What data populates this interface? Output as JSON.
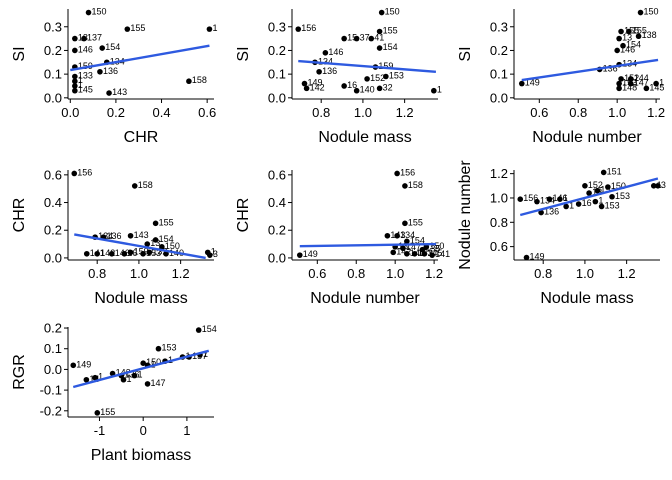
{
  "chart_data": [
    {
      "type": "scatter",
      "xlabel": "CHR",
      "ylabel": "SI",
      "xlim": [
        -0.01,
        0.63
      ],
      "ylim": [
        -0.005,
        0.375
      ],
      "xticks": [
        {
          "v": 0.0,
          "label": "0.0"
        },
        {
          "v": 0.2,
          "label": "0.2"
        },
        {
          "v": 0.4,
          "label": "0.4"
        },
        {
          "v": 0.6,
          "label": "0.6"
        }
      ],
      "yticks": [
        {
          "v": 0.0,
          "label": "0.0"
        },
        {
          "v": 0.1,
          "label": "0.1"
        },
        {
          "v": 0.2,
          "label": "0.2"
        },
        {
          "v": 0.3,
          "label": "0.3"
        }
      ],
      "fit": {
        "x": [
          0.0,
          0.61
        ],
        "y": [
          0.117,
          0.22
        ]
      },
      "points": [
        {
          "x": 0.08,
          "y": 0.36,
          "label": "150"
        },
        {
          "x": 0.25,
          "y": 0.29,
          "label": "155"
        },
        {
          "x": 0.61,
          "y": 0.29,
          "label": "1"
        },
        {
          "x": 0.02,
          "y": 0.25,
          "label": "13"
        },
        {
          "x": 0.06,
          "y": 0.25,
          "label": "137"
        },
        {
          "x": 0.02,
          "y": 0.2,
          "label": "146"
        },
        {
          "x": 0.14,
          "y": 0.21,
          "label": "154"
        },
        {
          "x": 0.02,
          "y": 0.13,
          "label": "159"
        },
        {
          "x": 0.16,
          "y": 0.15,
          "label": "134"
        },
        {
          "x": 0.13,
          "y": 0.11,
          "label": "136"
        },
        {
          "x": 0.02,
          "y": 0.09,
          "label": "133"
        },
        {
          "x": 0.02,
          "y": 0.07,
          "label": "1"
        },
        {
          "x": 0.02,
          "y": 0.05,
          "label": "1"
        },
        {
          "x": 0.02,
          "y": 0.03,
          "label": "145"
        },
        {
          "x": 0.52,
          "y": 0.07,
          "label": "158"
        },
        {
          "x": 0.17,
          "y": 0.02,
          "label": "143"
        }
      ]
    },
    {
      "type": "scatter",
      "xlabel": "Nodule mass",
      "ylabel": "SI",
      "xlim": [
        0.66,
        1.36
      ],
      "ylim": [
        -0.005,
        0.375
      ],
      "xticks": [
        {
          "v": 0.8,
          "label": "0.8"
        },
        {
          "v": 1.0,
          "label": "1.0"
        },
        {
          "v": 1.2,
          "label": "1.2"
        }
      ],
      "yticks": [
        {
          "v": 0.0,
          "label": "0.0"
        },
        {
          "v": 0.1,
          "label": "0.1"
        },
        {
          "v": 0.2,
          "label": "0.2"
        },
        {
          "v": 0.3,
          "label": "0.3"
        }
      ],
      "fit": {
        "x": [
          0.69,
          1.35
        ],
        "y": [
          0.155,
          0.11
        ]
      },
      "points": [
        {
          "x": 1.09,
          "y": 0.36,
          "label": "150"
        },
        {
          "x": 0.69,
          "y": 0.29,
          "label": "156"
        },
        {
          "x": 1.08,
          "y": 0.28,
          "label": "155"
        },
        {
          "x": 0.91,
          "y": 0.25,
          "label": "15"
        },
        {
          "x": 0.97,
          "y": 0.25,
          "label": "37"
        },
        {
          "x": 1.04,
          "y": 0.25,
          "label": "41"
        },
        {
          "x": 0.82,
          "y": 0.19,
          "label": "146"
        },
        {
          "x": 1.08,
          "y": 0.21,
          "label": "154"
        },
        {
          "x": 0.77,
          "y": 0.15,
          "label": "134"
        },
        {
          "x": 1.06,
          "y": 0.13,
          "label": "159"
        },
        {
          "x": 0.79,
          "y": 0.11,
          "label": "136"
        },
        {
          "x": 1.02,
          "y": 0.08,
          "label": "152"
        },
        {
          "x": 1.11,
          "y": 0.09,
          "label": "153"
        },
        {
          "x": 0.72,
          "y": 0.06,
          "label": "149"
        },
        {
          "x": 0.73,
          "y": 0.04,
          "label": "142"
        },
        {
          "x": 0.91,
          "y": 0.05,
          "label": "16"
        },
        {
          "x": 0.97,
          "y": 0.03,
          "label": "140"
        },
        {
          "x": 1.08,
          "y": 0.04,
          "label": "32"
        },
        {
          "x": 1.34,
          "y": 0.03,
          "label": "1"
        }
      ]
    },
    {
      "type": "scatter",
      "xlabel": "Nodule number",
      "ylabel": "SI",
      "xlim": [
        0.47,
        1.22
      ],
      "ylim": [
        -0.005,
        0.375
      ],
      "xticks": [
        {
          "v": 0.6,
          "label": "0.6"
        },
        {
          "v": 0.8,
          "label": "0.8"
        },
        {
          "v": 1.0,
          "label": "1.0"
        },
        {
          "v": 1.2,
          "label": "1.2"
        }
      ],
      "yticks": [
        {
          "v": 0.0,
          "label": "0.0"
        },
        {
          "v": 0.1,
          "label": "0.1"
        },
        {
          "v": 0.2,
          "label": "0.2"
        },
        {
          "v": 0.3,
          "label": "0.3"
        }
      ],
      "fit": {
        "x": [
          0.51,
          1.21
        ],
        "y": [
          0.075,
          0.16
        ]
      },
      "points": [
        {
          "x": 1.12,
          "y": 0.36,
          "label": "150"
        },
        {
          "x": 1.02,
          "y": 0.28,
          "label": "155"
        },
        {
          "x": 1.06,
          "y": 0.28,
          "label": "155"
        },
        {
          "x": 1.11,
          "y": 0.26,
          "label": "138"
        },
        {
          "x": 1.01,
          "y": 0.25,
          "label": "13"
        },
        {
          "x": 1.03,
          "y": 0.22,
          "label": "154"
        },
        {
          "x": 1.0,
          "y": 0.2,
          "label": "146"
        },
        {
          "x": 1.01,
          "y": 0.14,
          "label": "134"
        },
        {
          "x": 0.91,
          "y": 0.12,
          "label": "136"
        },
        {
          "x": 1.02,
          "y": 0.08,
          "label": "152"
        },
        {
          "x": 1.07,
          "y": 0.08,
          "label": "144"
        },
        {
          "x": 1.01,
          "y": 0.06,
          "label": "153"
        },
        {
          "x": 1.07,
          "y": 0.06,
          "label": "147"
        },
        {
          "x": 1.01,
          "y": 0.04,
          "label": "148"
        },
        {
          "x": 1.15,
          "y": 0.04,
          "label": "145"
        },
        {
          "x": 1.2,
          "y": 0.06,
          "label": "1"
        },
        {
          "x": 0.51,
          "y": 0.06,
          "label": "149"
        }
      ]
    },
    {
      "type": "scatter",
      "xlabel": "Nodule mass",
      "ylabel": "CHR",
      "xlim": [
        0.66,
        1.36
      ],
      "ylim": [
        -0.015,
        0.635
      ],
      "xticks": [
        {
          "v": 0.8,
          "label": "0.8"
        },
        {
          "v": 1.0,
          "label": "1.0"
        },
        {
          "v": 1.2,
          "label": "1.2"
        }
      ],
      "yticks": [
        {
          "v": 0.0,
          "label": "0.0"
        },
        {
          "v": 0.2,
          "label": "0.2"
        },
        {
          "v": 0.4,
          "label": "0.4"
        },
        {
          "v": 0.6,
          "label": "0.6"
        }
      ],
      "fit": {
        "x": [
          0.69,
          1.32
        ],
        "y": [
          0.17,
          0.0
        ]
      },
      "points": [
        {
          "x": 0.69,
          "y": 0.61,
          "label": "156"
        },
        {
          "x": 0.98,
          "y": 0.52,
          "label": "158"
        },
        {
          "x": 1.08,
          "y": 0.25,
          "label": "155"
        },
        {
          "x": 0.79,
          "y": 0.15,
          "label": "134"
        },
        {
          "x": 0.83,
          "y": 0.15,
          "label": "136"
        },
        {
          "x": 0.96,
          "y": 0.16,
          "label": "143"
        },
        {
          "x": 1.08,
          "y": 0.13,
          "label": "154"
        },
        {
          "x": 1.11,
          "y": 0.08,
          "label": "150"
        },
        {
          "x": 1.04,
          "y": 0.1,
          "label": "13"
        },
        {
          "x": 0.75,
          "y": 0.03,
          "label": "141"
        },
        {
          "x": 0.8,
          "y": 0.03,
          "label": "142"
        },
        {
          "x": 0.87,
          "y": 0.03,
          "label": "146"
        },
        {
          "x": 0.93,
          "y": 0.03,
          "label": "16"
        },
        {
          "x": 0.96,
          "y": 0.04,
          "label": "159"
        },
        {
          "x": 1.02,
          "y": 0.03,
          "label": "153"
        },
        {
          "x": 1.05,
          "y": 0.04,
          "label": "132"
        },
        {
          "x": 1.13,
          "y": 0.03,
          "label": "140"
        },
        {
          "x": 1.33,
          "y": 0.04,
          "label": "1"
        },
        {
          "x": 1.34,
          "y": 0.02,
          "label": "3"
        }
      ]
    },
    {
      "type": "scatter",
      "xlabel": "Nodule number",
      "ylabel": "CHR",
      "xlim": [
        0.47,
        1.22
      ],
      "ylim": [
        -0.015,
        0.635
      ],
      "xticks": [
        {
          "v": 0.6,
          "label": "0.6"
        },
        {
          "v": 0.8,
          "label": "0.8"
        },
        {
          "v": 1.0,
          "label": "1.0"
        },
        {
          "v": 1.2,
          "label": "1.2"
        }
      ],
      "yticks": [
        {
          "v": 0.0,
          "label": "0.0"
        },
        {
          "v": 0.2,
          "label": "0.2"
        },
        {
          "v": 0.4,
          "label": "0.4"
        },
        {
          "v": 0.6,
          "label": "0.6"
        }
      ],
      "fit": {
        "x": [
          0.51,
          1.21
        ],
        "y": [
          0.085,
          0.1
        ]
      },
      "points": [
        {
          "x": 1.01,
          "y": 0.61,
          "label": "156"
        },
        {
          "x": 1.05,
          "y": 0.52,
          "label": "158"
        },
        {
          "x": 1.05,
          "y": 0.25,
          "label": "155"
        },
        {
          "x": 0.96,
          "y": 0.16,
          "label": "143"
        },
        {
          "x": 1.01,
          "y": 0.16,
          "label": "134"
        },
        {
          "x": 1.06,
          "y": 0.12,
          "label": "154"
        },
        {
          "x": 1.0,
          "y": 0.08,
          "label": "13"
        },
        {
          "x": 1.04,
          "y": 0.07,
          "label": "147"
        },
        {
          "x": 1.16,
          "y": 0.08,
          "label": "150"
        },
        {
          "x": 1.14,
          "y": 0.06,
          "label": "135"
        },
        {
          "x": 0.99,
          "y": 0.04,
          "label": "142"
        },
        {
          "x": 1.06,
          "y": 0.03,
          "label": "140"
        },
        {
          "x": 1.1,
          "y": 0.03,
          "label": "153"
        },
        {
          "x": 1.15,
          "y": 0.03,
          "label": "145"
        },
        {
          "x": 1.19,
          "y": 0.02,
          "label": "141"
        },
        {
          "x": 0.51,
          "y": 0.02,
          "label": "149"
        }
      ]
    },
    {
      "type": "scatter",
      "xlabel": "Nodule mass",
      "ylabel": "Nodule number",
      "xlim": [
        0.66,
        1.36
      ],
      "ylim": [
        0.49,
        1.23
      ],
      "xticks": [
        {
          "v": 0.8,
          "label": "0.8"
        },
        {
          "v": 1.0,
          "label": "1.0"
        },
        {
          "v": 1.2,
          "label": "1.2"
        }
      ],
      "yticks": [
        {
          "v": 0.6,
          "label": "0.6"
        },
        {
          "v": 0.8,
          "label": "0.8"
        },
        {
          "v": 1.0,
          "label": "1.0"
        },
        {
          "v": 1.2,
          "label": "1.2"
        }
      ],
      "fit": {
        "x": [
          0.69,
          1.35
        ],
        "y": [
          0.86,
          1.16
        ]
      },
      "points": [
        {
          "x": 1.09,
          "y": 1.21,
          "label": "151"
        },
        {
          "x": 0.69,
          "y": 0.99,
          "label": "156"
        },
        {
          "x": 0.77,
          "y": 0.97,
          "label": "134"
        },
        {
          "x": 0.83,
          "y": 0.99,
          "label": "146"
        },
        {
          "x": 0.88,
          "y": 0.99,
          "label": "1"
        },
        {
          "x": 0.79,
          "y": 0.88,
          "label": "136"
        },
        {
          "x": 0.91,
          "y": 0.93,
          "label": "1"
        },
        {
          "x": 0.97,
          "y": 0.95,
          "label": "16"
        },
        {
          "x": 1.0,
          "y": 1.1,
          "label": "152"
        },
        {
          "x": 1.02,
          "y": 1.04,
          "label": "13"
        },
        {
          "x": 1.06,
          "y": 1.06,
          "label": "15"
        },
        {
          "x": 1.11,
          "y": 1.09,
          "label": "150"
        },
        {
          "x": 1.13,
          "y": 1.01,
          "label": "153"
        },
        {
          "x": 1.08,
          "y": 0.93,
          "label": "153"
        },
        {
          "x": 1.05,
          "y": 0.97,
          "label": "1"
        },
        {
          "x": 1.33,
          "y": 1.1,
          "label": "1"
        },
        {
          "x": 1.35,
          "y": 1.1,
          "label": "3"
        },
        {
          "x": 0.72,
          "y": 0.51,
          "label": "149"
        }
      ]
    },
    {
      "type": "scatter",
      "xlabel": "Plant biomass",
      "ylabel": "RGR",
      "xlim": [
        -1.72,
        1.62
      ],
      "ylim": [
        -0.23,
        0.205
      ],
      "xticks": [
        {
          "v": -1,
          "label": "-1"
        },
        {
          "v": 0,
          "label": "0"
        },
        {
          "v": 1,
          "label": "1"
        }
      ],
      "yticks": [
        {
          "v": -0.2,
          "label": "-0.2"
        },
        {
          "v": -0.1,
          "label": "-0.1"
        },
        {
          "v": 0.0,
          "label": "0.0"
        },
        {
          "v": 0.1,
          "label": "0.1"
        },
        {
          "v": 0.2,
          "label": "0.2"
        }
      ],
      "fit": {
        "x": [
          -1.6,
          1.5
        ],
        "y": [
          -0.085,
          0.09
        ]
      },
      "points": [
        {
          "x": 1.27,
          "y": 0.19,
          "label": "154"
        },
        {
          "x": 0.35,
          "y": 0.1,
          "label": "153"
        },
        {
          "x": -1.6,
          "y": 0.02,
          "label": "149"
        },
        {
          "x": -1.3,
          "y": -0.05,
          "label": "14"
        },
        {
          "x": -1.1,
          "y": -0.04,
          "label": "1"
        },
        {
          "x": -0.7,
          "y": -0.02,
          "label": "142"
        },
        {
          "x": -0.5,
          "y": -0.03,
          "label": "136"
        },
        {
          "x": -0.45,
          "y": -0.05,
          "label": "1"
        },
        {
          "x": -0.2,
          "y": -0.03,
          "label": "1"
        },
        {
          "x": 0.0,
          "y": 0.03,
          "label": "150"
        },
        {
          "x": 0.1,
          "y": 0.02,
          "label": "1"
        },
        {
          "x": 0.5,
          "y": 0.04,
          "label": "1"
        },
        {
          "x": 0.9,
          "y": 0.06,
          "label": "1"
        },
        {
          "x": 1.05,
          "y": 0.06,
          "label": "157"
        },
        {
          "x": 1.3,
          "y": 0.07,
          "label": "1"
        },
        {
          "x": 0.1,
          "y": -0.07,
          "label": "147"
        },
        {
          "x": -1.05,
          "y": -0.21,
          "label": "155"
        }
      ]
    }
  ]
}
